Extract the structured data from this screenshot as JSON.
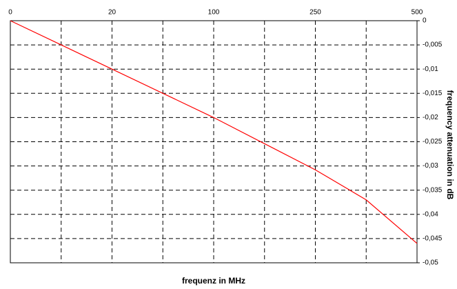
{
  "chart_data": {
    "type": "line",
    "x_label": "frequenz in MHz",
    "y_label": "frequency attenuation in dB",
    "categories": [
      "0",
      null,
      "20",
      null,
      "100",
      null,
      "250",
      null,
      "500"
    ],
    "series": [
      {
        "name": "attenuation",
        "color": "#ff0000",
        "values": [
          0,
          -0.005,
          -0.01,
          -0.015,
          -0.02,
          -0.0254,
          -0.0308,
          -0.037,
          -0.046
        ]
      }
    ],
    "ylim": [
      0,
      -0.05
    ],
    "yticks": [
      0,
      {
        "value": -0.005,
        "label": "-0,005"
      },
      {
        "value": -0.01,
        "label": "-0,01"
      },
      {
        "value": -0.015,
        "label": "-0,015"
      },
      {
        "value": -0.02,
        "label": "-0,02"
      },
      {
        "value": -0.025,
        "label": "-0,025"
      },
      {
        "value": -0.03,
        "label": "-0,03"
      },
      {
        "value": -0.035,
        "label": "-0,035"
      },
      {
        "value": -0.04,
        "label": "-0,04"
      },
      {
        "value": -0.045,
        "label": "-0,045"
      },
      {
        "value": -0.05,
        "label": "-0,05"
      }
    ],
    "grid": true
  }
}
